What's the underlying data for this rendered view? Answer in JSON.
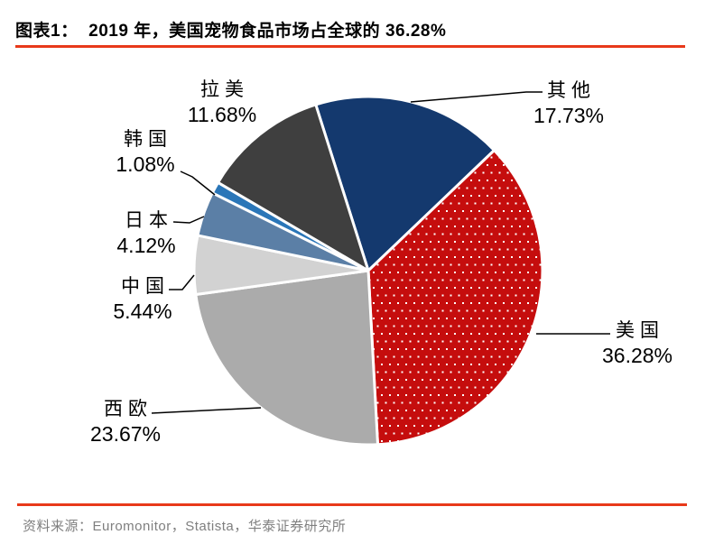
{
  "header": {
    "title": "图表1：  2019 年，美国宠物食品市场占全球的 36.28%"
  },
  "chart_data": {
    "type": "pie",
    "unit": "%",
    "rotation_deg": -17.55,
    "label_style": "callout-with-leader-lines",
    "legend": "none",
    "slices": [
      {
        "id": "others",
        "name": "其他",
        "value": 17.73,
        "pct": "17.73%",
        "color": "#14396E"
      },
      {
        "id": "usa",
        "name": "美国",
        "value": 36.28,
        "pct": "36.28%",
        "color": "#C50D0D",
        "pattern": "white-dots"
      },
      {
        "id": "western-europe",
        "name": "西欧",
        "value": 23.67,
        "pct": "23.67%",
        "color": "#ABABAB"
      },
      {
        "id": "china",
        "name": "中国",
        "value": 5.44,
        "pct": "5.44%",
        "color": "#D2D2D2"
      },
      {
        "id": "japan",
        "name": "日本",
        "value": 4.12,
        "pct": "4.12%",
        "color": "#5B7FA6"
      },
      {
        "id": "south-korea",
        "name": "韩国",
        "value": 1.08,
        "pct": "1.08%",
        "color": "#2A76B8"
      },
      {
        "id": "latin-america",
        "name": "拉美",
        "value": 11.68,
        "pct": "11.68%",
        "color": "#3F3F3F"
      }
    ],
    "pattern_dot_color": "#FFFFFF",
    "slice_border_color": "#FFFFFF",
    "leader_line_color": "#000000"
  },
  "footer": {
    "source": "资料来源：Euromonitor，Statista，华泰证券研究所"
  },
  "colors": {
    "rule_red": "#E8391A",
    "source_gray": "#7F7F7F",
    "title_color": "#000000"
  }
}
